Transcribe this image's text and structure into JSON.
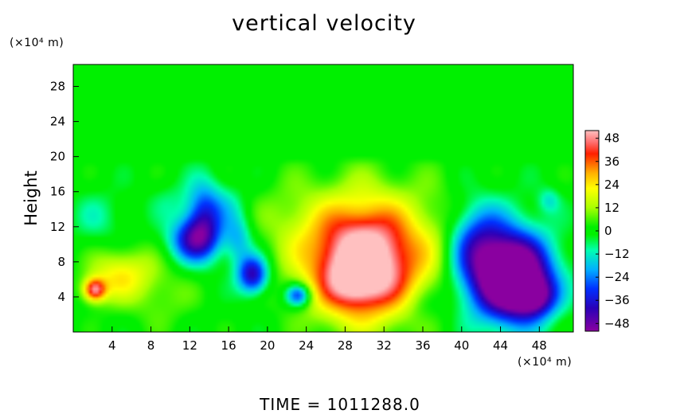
{
  "title": "vertical velocity",
  "footer": "TIME = 1011288.0",
  "ylabel": "Height",
  "yunit": "(×10⁴ m)",
  "xunit": "(×10⁴ m)",
  "colorbar": {
    "ticks": [
      "48",
      "36",
      "24",
      "12",
      "0",
      "−12",
      "−24",
      "−36",
      "−48"
    ]
  },
  "chart_data": {
    "type": "heatmap",
    "title": "vertical velocity",
    "ylabel": "Height",
    "xlim": [
      0,
      51.5
    ],
    "ylim": [
      0,
      30.5
    ],
    "xticks": [
      4,
      8,
      12,
      16,
      20,
      24,
      28,
      32,
      36,
      40,
      44,
      48
    ],
    "yticks": [
      4,
      8,
      12,
      16,
      20,
      24,
      28
    ],
    "zlim": [
      -52,
      52
    ],
    "colorscale": [
      {
        "v": -52,
        "c": "#8a00a0"
      },
      {
        "v": -40,
        "c": "#2a00b8"
      },
      {
        "v": -30,
        "c": "#0030ff"
      },
      {
        "v": -20,
        "c": "#00b0ff"
      },
      {
        "v": -10,
        "c": "#00ffb0"
      },
      {
        "v": -2,
        "c": "#00f000"
      },
      {
        "v": 2,
        "c": "#00f000"
      },
      {
        "v": 12,
        "c": "#a8ff00"
      },
      {
        "v": 22,
        "c": "#ffff00"
      },
      {
        "v": 30,
        "c": "#ffb000"
      },
      {
        "v": 40,
        "c": "#ff2000"
      },
      {
        "v": 46,
        "c": "#ff7070"
      },
      {
        "v": 52,
        "c": "#ffc0c0"
      }
    ],
    "features": [
      {
        "x": 30,
        "y": 8,
        "amplitude": 58,
        "sx": 4.2,
        "sy": 4.5
      },
      {
        "x": 29,
        "y": 5.5,
        "amplitude": 15,
        "sx": 2.0,
        "sy": 2.0
      },
      {
        "x": 30,
        "y": 11,
        "amplitude": 8,
        "sx": 5.5,
        "sy": 5.5
      },
      {
        "x": 45.5,
        "y": 6,
        "amplitude": -62,
        "sx": 2.6,
        "sy": 3.2
      },
      {
        "x": 43,
        "y": 7.5,
        "amplitude": -28,
        "sx": 3.5,
        "sy": 4.0
      },
      {
        "x": 41.5,
        "y": 10.5,
        "amplitude": -18,
        "sx": 2.0,
        "sy": 3.0
      },
      {
        "x": 47.5,
        "y": 4,
        "amplitude": -30,
        "sx": 1.5,
        "sy": 1.5
      },
      {
        "x": 12.5,
        "y": 10.5,
        "amplitude": -38,
        "sx": 1.8,
        "sy": 1.8
      },
      {
        "x": 13.5,
        "y": 13.5,
        "amplitude": -30,
        "sx": 1.3,
        "sy": 2.6
      },
      {
        "x": 18.5,
        "y": 6.5,
        "amplitude": -42,
        "sx": 1.1,
        "sy": 1.5
      },
      {
        "x": 17,
        "y": 10.5,
        "amplitude": -18,
        "sx": 1.0,
        "sy": 2.0
      },
      {
        "x": 23.2,
        "y": 4.2,
        "amplitude": -36,
        "sx": 0.9,
        "sy": 0.9
      },
      {
        "x": 2.2,
        "y": 4.8,
        "amplitude": 42,
        "sx": 0.8,
        "sy": 0.9
      },
      {
        "x": 5.5,
        "y": 7,
        "amplitude": 16,
        "sx": 2.3,
        "sy": 2.0
      },
      {
        "x": 3.5,
        "y": 5.5,
        "amplitude": 10,
        "sx": 2.0,
        "sy": 2.0
      },
      {
        "x": 2.5,
        "y": 13,
        "amplitude": -8,
        "sx": 2.0,
        "sy": 2.2
      },
      {
        "x": 10,
        "y": 15,
        "amplitude": -6,
        "sx": 1.5,
        "sy": 1.5
      },
      {
        "x": 16,
        "y": 14.5,
        "amplitude": -8,
        "sx": 1.2,
        "sy": 1.8
      },
      {
        "x": 49,
        "y": 15,
        "amplitude": -12,
        "sx": 0.8,
        "sy": 1.0
      },
      {
        "x": 38,
        "y": 9,
        "amplitude": 8,
        "sx": 2.0,
        "sy": 5.0
      },
      {
        "x": 22,
        "y": 13,
        "amplitude": 6,
        "sx": 2.5,
        "sy": 3.0
      },
      {
        "x": 9,
        "y": 4,
        "amplitude": 8,
        "sx": 2.5,
        "sy": 2.5
      },
      {
        "x": 36,
        "y": 3,
        "amplitude": -6,
        "sx": 1.5,
        "sy": 1.5
      }
    ]
  }
}
